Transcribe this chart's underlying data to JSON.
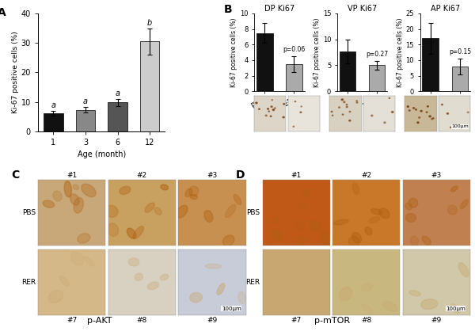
{
  "panel_A": {
    "categories": [
      "1",
      "3",
      "6",
      "12"
    ],
    "values": [
      6.2,
      7.3,
      9.8,
      30.5
    ],
    "errors": [
      0.8,
      1.0,
      1.2,
      4.5
    ],
    "bar_colors": [
      "#111111",
      "#888888",
      "#555555",
      "#cccccc"
    ],
    "ylabel": "Ki-67 positive cells (%)",
    "xlabel": "Age (month)",
    "ylim": [
      0,
      40
    ],
    "yticks": [
      0,
      10,
      20,
      30,
      40
    ],
    "letters": [
      "a",
      "a",
      "a",
      "b"
    ]
  },
  "panel_B": {
    "subpanels": [
      {
        "title": "DP Ki67",
        "pbs_val": 7.5,
        "pbs_err": 1.3,
        "rer_val": 3.5,
        "rer_err": 1.0,
        "pval": "p=0.06",
        "ylim": [
          0,
          10
        ],
        "yticks": [
          0,
          2,
          4,
          6,
          8,
          10
        ],
        "ylabel": "Ki-67 positive cells (%)",
        "img_pbs_bg": "#ddd5c8",
        "img_rer_bg": "#e8e4dc"
      },
      {
        "title": "VP Ki67",
        "pbs_val": 7.7,
        "pbs_err": 2.3,
        "rer_val": 5.0,
        "rer_err": 0.8,
        "pval": "p=0.27",
        "ylim": [
          0,
          15
        ],
        "yticks": [
          0,
          5,
          10,
          15
        ],
        "ylabel": "Ki-67 positive cells (%)",
        "img_pbs_bg": "#d8d0c0",
        "img_rer_bg": "#e4e0d8"
      },
      {
        "title": "AP Ki67",
        "pbs_val": 17.0,
        "pbs_err": 5.0,
        "rer_val": 8.0,
        "rer_err": 2.5,
        "pval": "p=0.15",
        "ylim": [
          0,
          25
        ],
        "yticks": [
          0,
          5,
          10,
          15,
          20,
          25
        ],
        "ylabel": "Ki-67 positive cells (%)",
        "img_pbs_bg": "#c8b898",
        "img_rer_bg": "#e0dcd0"
      }
    ],
    "pbs_color": "#111111",
    "rer_color": "#aaaaaa",
    "scale_bar": "100μm"
  },
  "panel_C": {
    "caption": "p-AKT",
    "top_labels": [
      "#1",
      "#2",
      "#3"
    ],
    "bot_labels": [
      "#7",
      "#8",
      "#9"
    ],
    "row_labels": [
      "PBS",
      "RER"
    ],
    "top_bg": [
      "#c8a878",
      "#c8a060",
      "#c89050"
    ],
    "bot_bg": [
      "#d4b888",
      "#d8d0c0",
      "#c8ccd8"
    ],
    "scale_bar": "100μm"
  },
  "panel_D": {
    "caption": "p-mTOR",
    "top_labels": [
      "#1",
      "#2",
      "#3"
    ],
    "bot_labels": [
      "#7",
      "#8",
      "#9"
    ],
    "row_labels": [
      "PBS",
      "RER"
    ],
    "top_bg": [
      "#c05818",
      "#c87828",
      "#c08050"
    ],
    "bot_bg": [
      "#c8a870",
      "#c8b880",
      "#d0c8a8"
    ],
    "scale_bar": "100μm"
  },
  "figure_bg": "#ffffff"
}
